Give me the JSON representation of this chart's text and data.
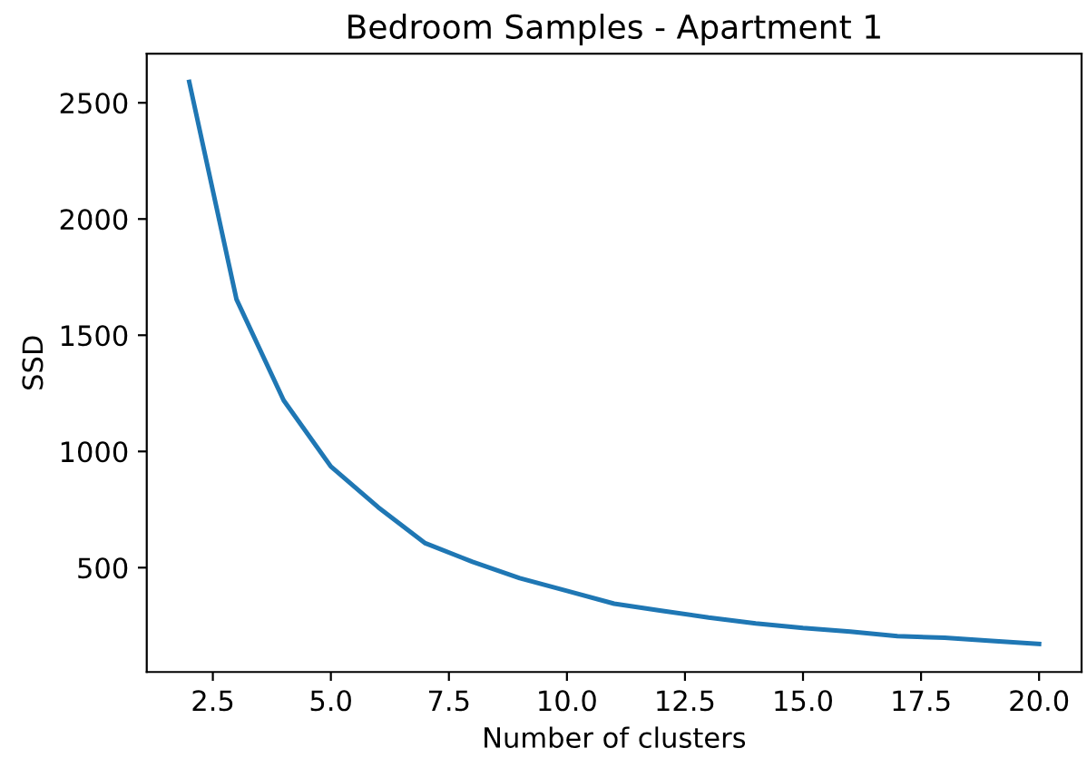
{
  "chart_data": {
    "type": "line",
    "title": "Bedroom Samples - Apartment 1",
    "xlabel": "Number of clusters",
    "ylabel": "SSD",
    "x": [
      2,
      3,
      4,
      5,
      6,
      7,
      8,
      9,
      10,
      11,
      12,
      13,
      14,
      15,
      16,
      17,
      18,
      19,
      20
    ],
    "series": [
      {
        "color": "#1f77b4",
        "values": [
          2590,
          1655,
          1220,
          935,
          760,
          605,
          525,
          455,
          400,
          345,
          315,
          285,
          260,
          240,
          225,
          205,
          198,
          185,
          172
        ]
      }
    ],
    "xlim": [
      1.1,
      20.9
    ],
    "xticks": [
      2.5,
      {
        "value": 5,
        "label": "5.0"
      },
      7.5,
      {
        "value": 10,
        "label": "10.0"
      },
      12.5,
      {
        "value": 15,
        "label": "15.0"
      },
      17.5,
      {
        "value": 20,
        "label": "20.0"
      }
    ],
    "ylim": [
      51,
      2711
    ],
    "yticks": [
      500,
      1000,
      1500,
      2000,
      2500
    ],
    "grid": false,
    "legend": false
  }
}
